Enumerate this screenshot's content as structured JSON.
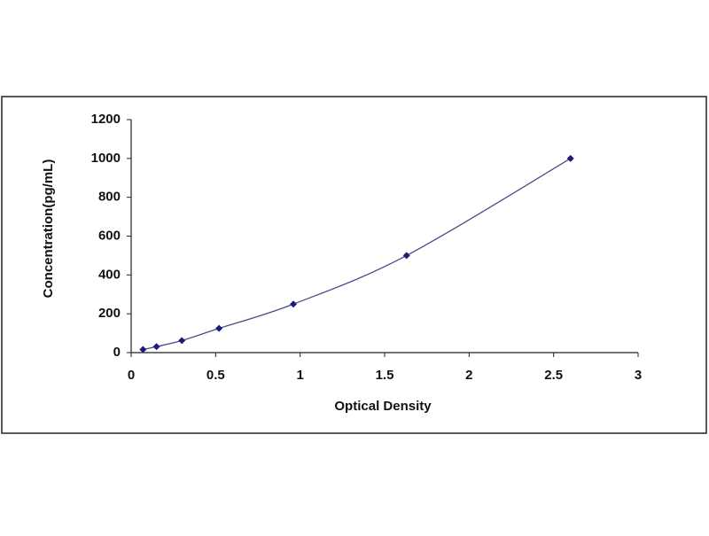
{
  "chart_data": {
    "type": "scatter",
    "x_label": "Optical Density",
    "y_label": "Concentration(pg/mL)",
    "x": [
      0.07,
      0.15,
      0.3,
      0.52,
      0.96,
      1.63,
      2.6
    ],
    "values": [
      16,
      31,
      62,
      125,
      250,
      500,
      1000
    ],
    "color": "#1c1c78",
    "line_color": "#4a4a8c",
    "xlim": [
      0,
      3
    ],
    "ylim": [
      0,
      1200
    ],
    "xticks": [
      0,
      0.5,
      1,
      1.5,
      2,
      2.5,
      3
    ],
    "yticks": [
      0,
      200,
      400,
      600,
      800,
      1000,
      1200
    ],
    "grid": false
  }
}
